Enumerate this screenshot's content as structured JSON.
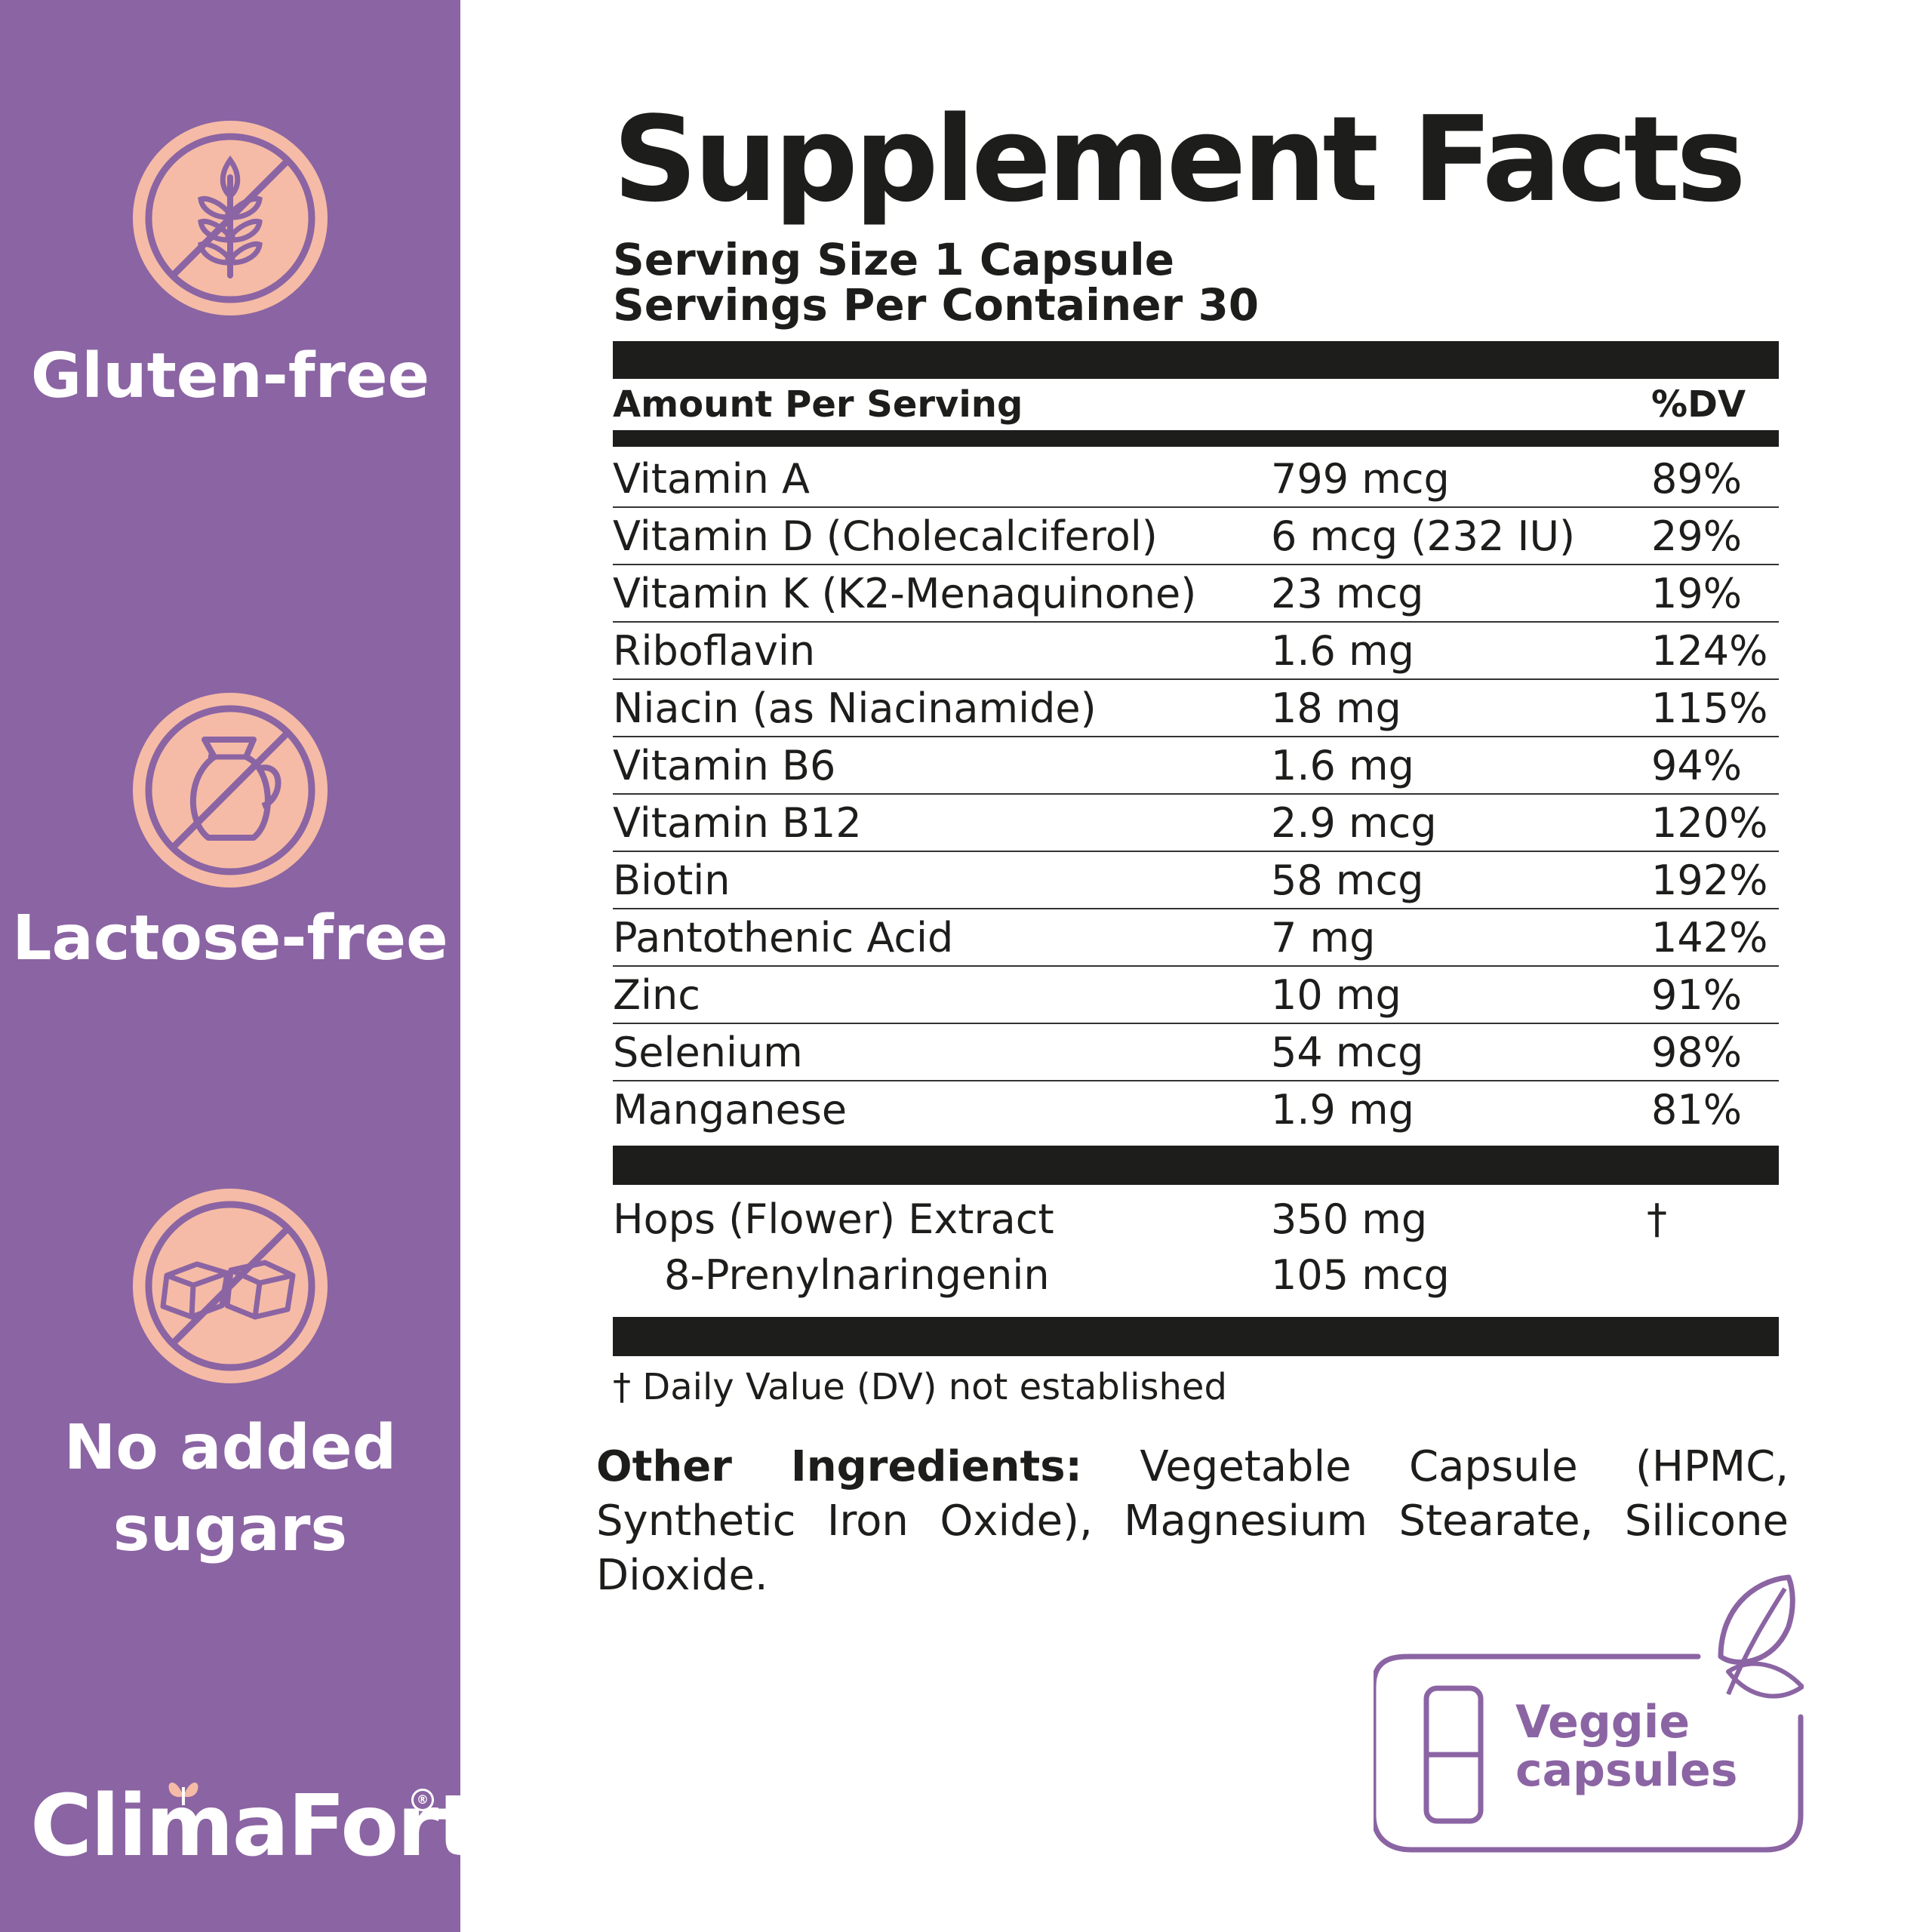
{
  "badges": [
    {
      "label_line1": "Gluten-free",
      "label_line2": "",
      "icon": "no-wheat-icon"
    },
    {
      "label_line1": "Lactose-free",
      "label_line2": "",
      "icon": "no-milk-jug-icon"
    },
    {
      "label_line1": "No added",
      "label_line2": "sugars",
      "icon": "no-sugar-cubes-icon"
    }
  ],
  "brand": {
    "name": "ClimaFort",
    "registered": "®"
  },
  "facts": {
    "title": "Supplement Facts",
    "serving_size": "Serving Size 1 Capsule",
    "servings_per_container": "Servings Per Container 30",
    "header_amount": "Amount Per Serving",
    "header_dv": "%DV",
    "rows": [
      {
        "name": "Vitamin A",
        "amount": "799 mcg",
        "dv": "89%"
      },
      {
        "name": "Vitamin D (Cholecalciferol)",
        "amount": "6 mcg (232 IU)",
        "dv": "29%"
      },
      {
        "name": "Vitamin K (K2-Menaquinone)",
        "amount": "23 mcg",
        "dv": "19%"
      },
      {
        "name": "Riboflavin",
        "amount": "1.6 mg",
        "dv": "124%"
      },
      {
        "name": "Niacin (as Niacinamide)",
        "amount": "18 mg",
        "dv": "115%"
      },
      {
        "name": "Vitamin B6",
        "amount": "1.6 mg",
        "dv": "94%"
      },
      {
        "name": "Vitamin B12",
        "amount": "2.9 mcg",
        "dv": "120%"
      },
      {
        "name": "Biotin",
        "amount": "58 mcg",
        "dv": "192%"
      },
      {
        "name": "Pantothenic Acid",
        "amount": "7 mg",
        "dv": "142%"
      },
      {
        "name": "Zinc",
        "amount": "10 mg",
        "dv": "91%"
      },
      {
        "name": "Selenium",
        "amount": "54 mcg",
        "dv": "98%"
      },
      {
        "name": "Manganese",
        "amount": "1.9 mg",
        "dv": "81%"
      }
    ],
    "extract": {
      "name": "Hops (Flower) Extract",
      "amount": "350 mg",
      "dv": "†"
    },
    "sub_extract": {
      "name": "8-Prenylnaringenin",
      "amount": "105 mcg"
    },
    "footnote": "† Daily Value (DV) not established",
    "other_label": "Other Ingredients:",
    "other_text": "Vegetable Capsule (HPMC, Synthetic Iron Oxide), Magnesium Stearate, Silicone Dioxide."
  },
  "veggie": {
    "line1": "Veggie",
    "line2": "capsules",
    "icon": "capsule-leaf-icon"
  },
  "colors": {
    "purple": "#8b64a3",
    "peach": "#f5bba6",
    "ink": "#1d1d1b"
  }
}
